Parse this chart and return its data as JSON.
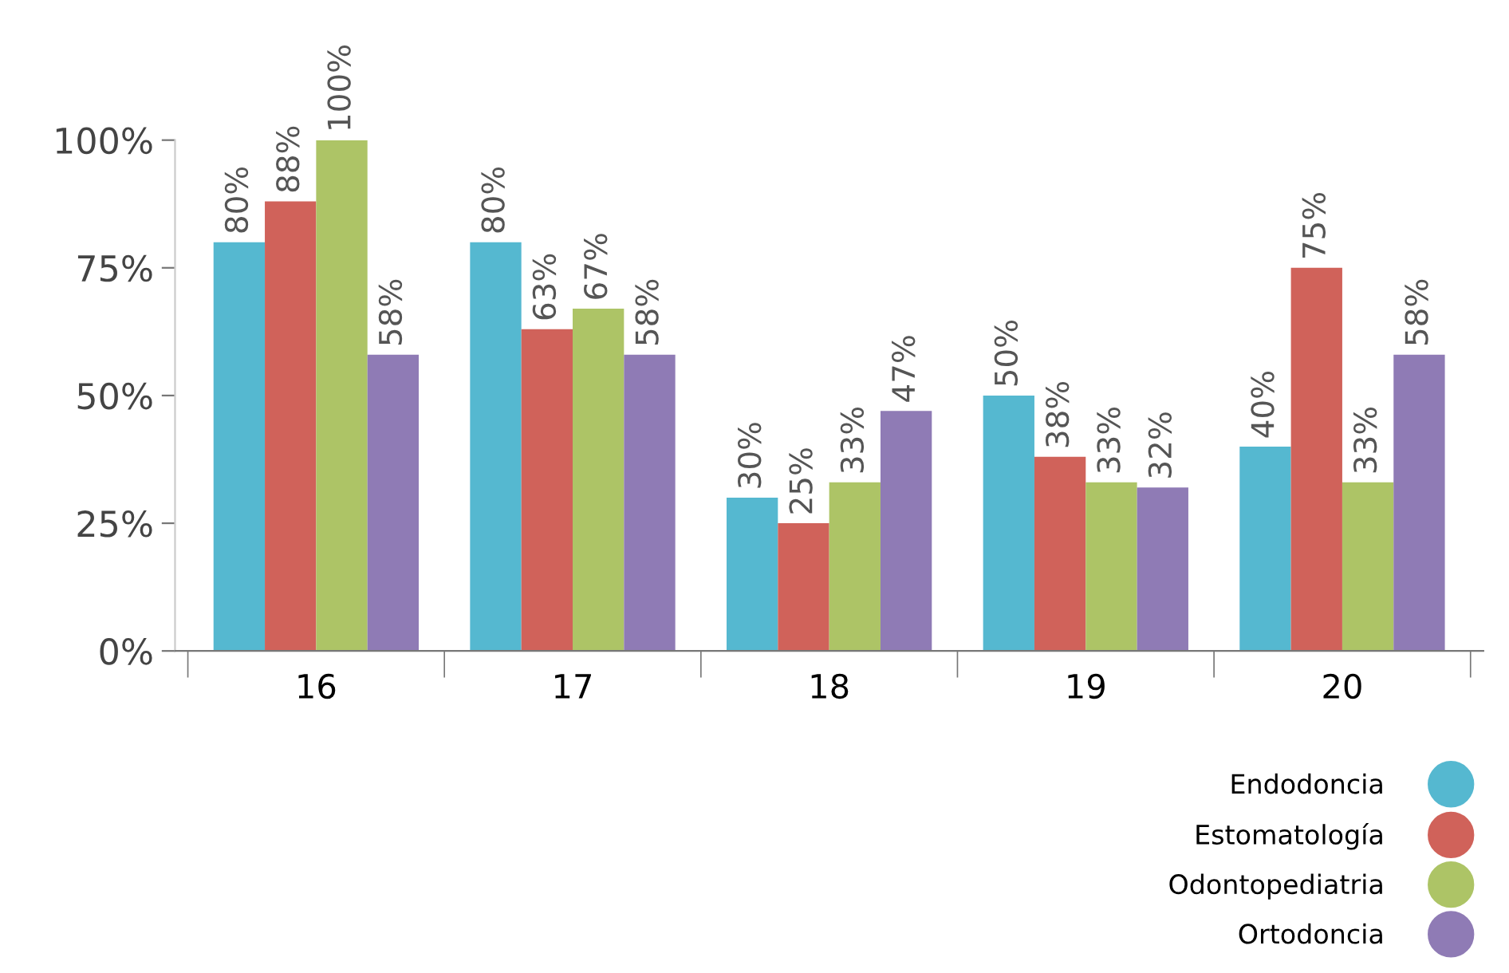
{
  "chart_data": {
    "type": "bar",
    "categories": [
      "16",
      "17",
      "18",
      "19",
      "20"
    ],
    "series": [
      {
        "name": "Endodoncia",
        "color": "#55b8d0",
        "values": [
          80,
          80,
          30,
          50,
          40
        ],
        "value_labels": [
          "80%",
          "80%",
          "30%",
          "50%",
          "40%"
        ]
      },
      {
        "name": "Estomatología",
        "color": "#d0625a",
        "values": [
          88,
          63,
          25,
          38,
          75
        ],
        "value_labels": [
          "88%",
          "63%",
          "25%",
          "38%",
          "75%"
        ]
      },
      {
        "name": "Odontopediatria",
        "color": "#adc466",
        "values": [
          100,
          67,
          33,
          33,
          33
        ],
        "value_labels": [
          "100%",
          "67%",
          "33%",
          "33%",
          "33%"
        ]
      },
      {
        "name": "Ortodoncia",
        "color": "#8f7bb5",
        "values": [
          58,
          58,
          47,
          32,
          58
        ],
        "value_labels": [
          "58%",
          "58%",
          "47%",
          "32%",
          "58%"
        ]
      }
    ],
    "ylim": [
      0,
      100
    ],
    "yticks": [
      {
        "value": 0,
        "label": "0%"
      },
      {
        "value": 25,
        "label": "25%"
      },
      {
        "value": 50,
        "label": "50%"
      },
      {
        "value": 75,
        "label": "75%"
      },
      {
        "value": 100,
        "label": "100%"
      }
    ],
    "grid": false,
    "legend": "bottom right"
  }
}
